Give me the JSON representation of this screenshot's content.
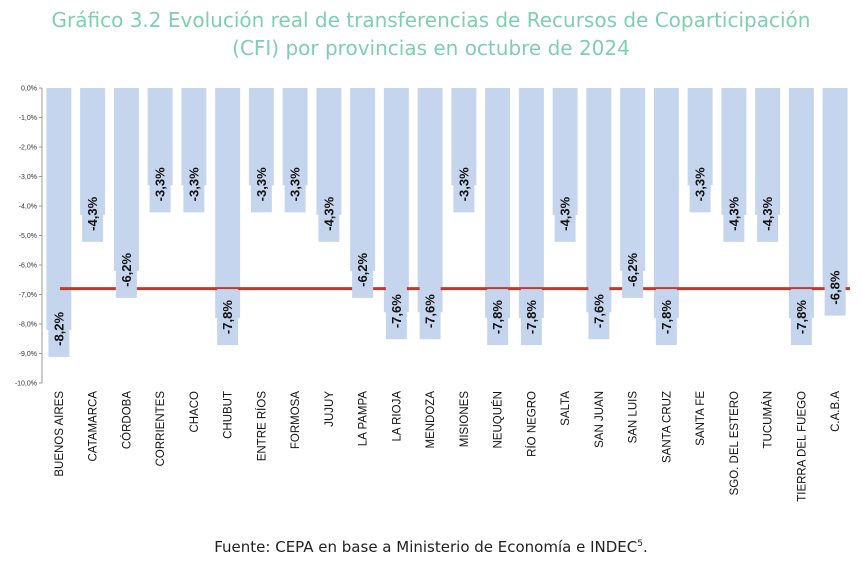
{
  "title_line1": "Gráfico 3.2 Evolución real de transferencias de Recursos de Coparticipación",
  "title_line2": "(CFI) por provincias en octubre de 2024",
  "source": "Fuente: CEPA en base a Ministerio de Economía e INDEC",
  "source_footnote": "5",
  "source_suffix": ".",
  "colors": {
    "bar": "#c6d5ee",
    "average_line": "#c0392b",
    "title": "#7ecfb0",
    "label_bg": "#c6d5ee"
  },
  "chart_data": {
    "type": "bar",
    "title": "Gráfico 3.2 Evolución real de transferencias de Recursos de Coparticipación (CFI) por provincias en octubre de 2024",
    "xlabel": "",
    "ylabel": "",
    "ylim": [
      -10.0,
      0.0
    ],
    "yticks": [
      0,
      -1,
      -2,
      -3,
      -4,
      -5,
      -6,
      -7,
      -8,
      -9,
      -10
    ],
    "ytick_labels": [
      "0,0%",
      "-1,0%",
      "-2,0%",
      "-3,0%",
      "-4,0%",
      "-5,0%",
      "-6,0%",
      "-7,0%",
      "-8,0%",
      "-9,0%",
      "-10,0%"
    ],
    "categories": [
      "BUENOS AIRES",
      "CATAMARCA",
      "CÓRDOBA",
      "CORRIENTES",
      "CHACO",
      "CHUBUT",
      "ENTRE RÍOS",
      "FORMOSA",
      "JUJUY",
      "LA PAMPA",
      "LA RIOJA",
      "MENDOZA",
      "MISIONES",
      "NEUQUÉN",
      "RÍO NEGRO",
      "SALTA",
      "SAN JUAN",
      "SAN LUIS",
      "SANTA CRUZ",
      "SANTA FE",
      "SGO. DEL ESTERO",
      "TUCUMÁN",
      "TIERRA DEL FUEGO",
      "C.A.B.A"
    ],
    "values": [
      -8.2,
      -4.3,
      -6.2,
      -3.3,
      -3.3,
      -7.8,
      -3.3,
      -3.3,
      -4.3,
      -6.2,
      -7.6,
      -7.6,
      -3.3,
      -7.8,
      -7.8,
      -4.3,
      -7.6,
      -6.2,
      -7.8,
      -3.3,
      -4.3,
      -4.3,
      -7.8,
      -6.8
    ],
    "data_labels": [
      "-8,2%",
      "-4,3%",
      "-6,2%",
      "-3,3%",
      "-3,3%",
      "-7,8%",
      "-3,3%",
      "-3,3%",
      "-4,3%",
      "-6,2%",
      "-7,6%",
      "-7,6%",
      "-3,3%",
      "-7,8%",
      "-7,8%",
      "-4,3%",
      "-7,6%",
      "-6,2%",
      "-7,8%",
      "-3,3%",
      "-4,3%",
      "-4,3%",
      "-7,8%",
      "-6,8%"
    ],
    "average_line_value": -6.8,
    "grid": false,
    "legend": "none"
  }
}
